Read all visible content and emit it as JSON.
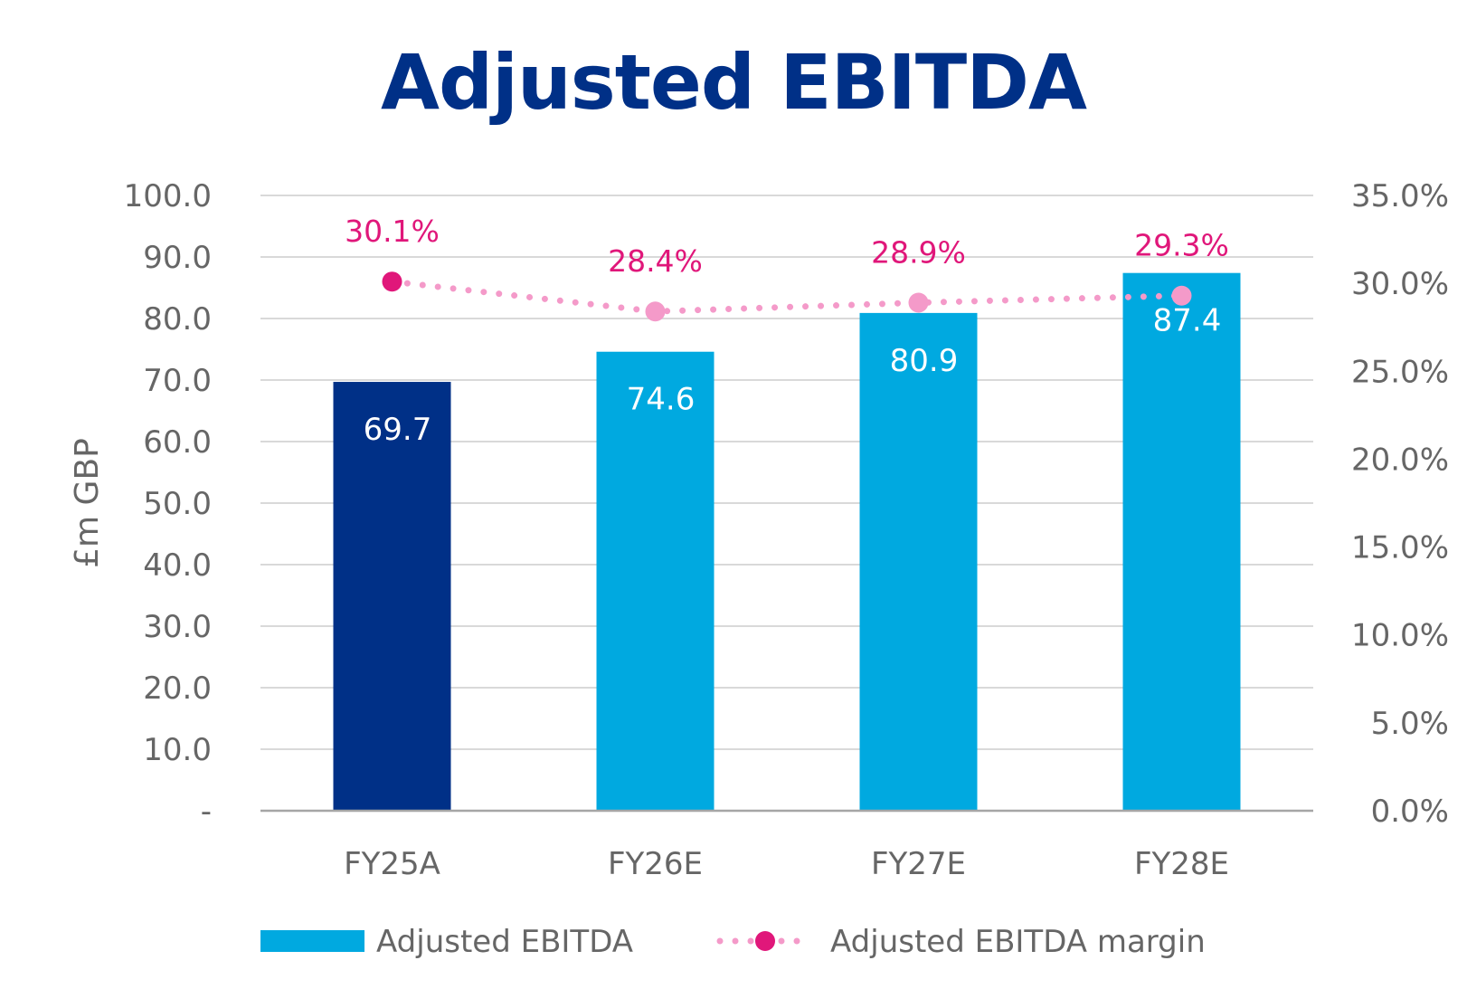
{
  "title": "Adjusted EBITDA",
  "colors": {
    "title": "#003087",
    "actual_bar": "#003087",
    "estimate_bar": "#00A9E0",
    "margin_line": "#F49AC9",
    "margin_marker_highlight": "#E0177A",
    "margin_label": "#E0177A",
    "grid": "#D9D9D9",
    "axis_text": "#666666"
  },
  "chart_data": {
    "type": "bar",
    "title": "Adjusted EBITDA",
    "categories": [
      "FY25A",
      "FY26E",
      "FY27E",
      "FY28E"
    ],
    "ylabel": "£m GBP",
    "ylim": [
      0,
      100
    ],
    "y_ticks": [
      "-",
      "10.0",
      "20.0",
      "30.0",
      "40.0",
      "50.0",
      "60.0",
      "70.0",
      "80.0",
      "90.0",
      "100.0"
    ],
    "y2lim": [
      0,
      35
    ],
    "y2_ticks": [
      "0.0%",
      "5.0%",
      "10.0%",
      "15.0%",
      "20.0%",
      "25.0%",
      "30.0%",
      "35.0%"
    ],
    "grid": true,
    "legend_position": "bottom",
    "series": [
      {
        "name": "Adjusted EBITDA",
        "type": "bar",
        "axis": "left",
        "values": [
          69.7,
          74.6,
          80.9,
          87.4
        ],
        "labels": [
          "69.7",
          "74.6",
          "80.9",
          "87.4"
        ]
      },
      {
        "name": "Adjusted EBITDA margin",
        "type": "line",
        "style": "dotted",
        "axis": "right",
        "values": [
          30.1,
          28.4,
          28.9,
          29.3
        ],
        "labels": [
          "30.1%",
          "28.4%",
          "28.9%",
          "29.3%"
        ]
      }
    ]
  }
}
